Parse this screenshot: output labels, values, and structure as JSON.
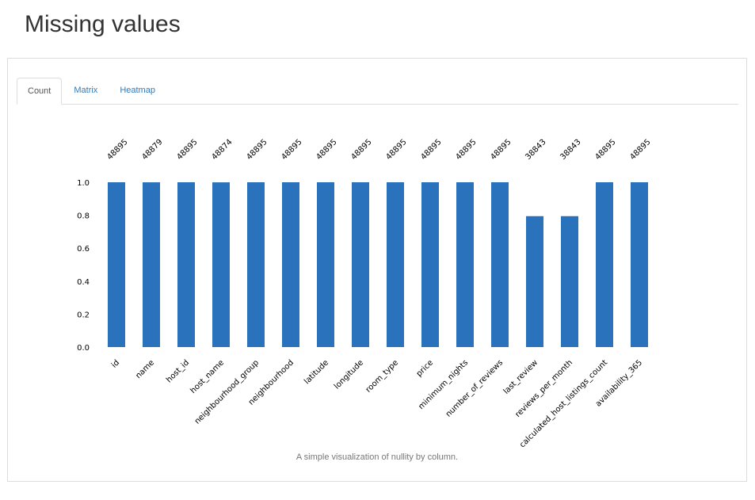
{
  "page": {
    "title": "Missing values"
  },
  "tabs": [
    {
      "label": "Count",
      "active": true
    },
    {
      "label": "Matrix",
      "active": false
    },
    {
      "label": "Heatmap",
      "active": false
    }
  ],
  "caption": "A simple visualization of nullity by column.",
  "chart_data": {
    "type": "bar",
    "categories": [
      "id",
      "name",
      "host_id",
      "host_name",
      "neighbourhood_group",
      "neighbourhood",
      "latitude",
      "longitude",
      "room_type",
      "price",
      "minimum_nights",
      "number_of_reviews",
      "last_review",
      "reviews_per_month",
      "calculated_host_listings_count",
      "availability_365"
    ],
    "counts": [
      48895,
      48879,
      48895,
      48874,
      48895,
      48895,
      48895,
      48895,
      48895,
      48895,
      48895,
      48895,
      38843,
      38843,
      48895,
      48895
    ],
    "total": 48895,
    "ylim": [
      0,
      1.0
    ],
    "yticks": [
      "0.0",
      "0.2",
      "0.4",
      "0.6",
      "0.8",
      "1.0"
    ],
    "bar_color": "#2a73bc",
    "grid": false
  }
}
